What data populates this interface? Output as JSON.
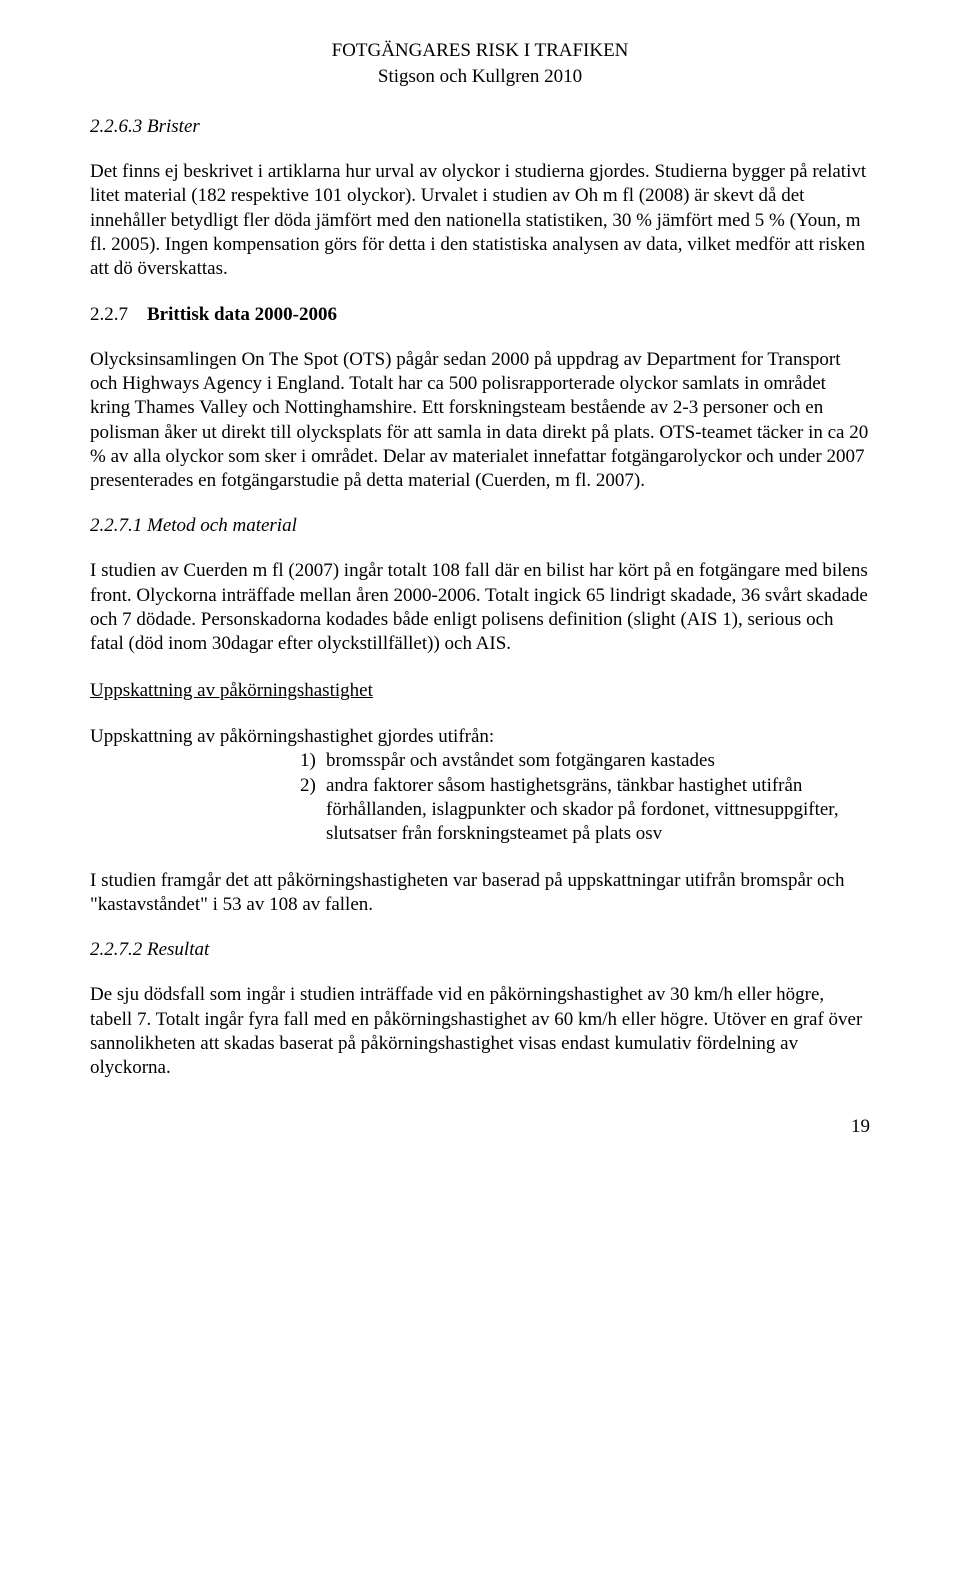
{
  "header": {
    "title": "FOTGÄNGARES RISK I TRAFIKEN",
    "subtitle": "Stigson och Kullgren 2010"
  },
  "s263": {
    "heading": "2.2.6.3   Brister",
    "para": "Det finns ej beskrivet i artiklarna hur urval av olyckor i studierna gjordes. Studierna bygger på relativt litet material (182 respektive 101 olyckor). Urvalet i studien av Oh m fl (2008) är skevt då det innehåller betydligt fler döda jämfört med den nationella statistiken, 30 % jämfört med 5 %  (Youn, m fl. 2005). Ingen kompensation görs för detta i den statistiska analysen av data, vilket medför att risken att dö överskattas."
  },
  "s227": {
    "num": "2.2.7",
    "title": "Brittisk data 2000-2006",
    "para": "Olycksinsamlingen On The Spot (OTS) pågår sedan 2000 på uppdrag av Department for Transport och Highways Agency i England. Totalt har ca 500 polisrapporterade olyckor samlats in området kring Thames Valley och Nottinghamshire. Ett forskningsteam bestående av 2-3 personer och en polisman åker ut direkt till olycksplats för att samla in data direkt på plats. OTS-teamet täcker in ca 20 % av alla olyckor som sker i området. Delar av materialet innefattar fotgängarolyckor och under 2007 presenterades en fotgängarstudie på detta material (Cuerden, m fl. 2007)."
  },
  "s2271": {
    "heading": "2.2.7.1   Metod och material",
    "para": "I studien av Cuerden m fl (2007) ingår totalt 108 fall där en bilist har kört på en fotgängare med bilens front. Olyckorna inträffade mellan åren 2000-2006. Totalt ingick 65 lindrigt skadade, 36 svårt skadade och 7 dödade. Personskadorna kodades både enligt polisens definition (slight (AIS 1), serious och fatal (död inom 30dagar efter olyckstillfället)) och AIS."
  },
  "estimation": {
    "title": "Uppskattning av påkörningshastighet",
    "intro": "Uppskattning av påkörningshastighet gjordes utifrån:",
    "items": [
      {
        "marker": "1)",
        "text": "bromsspår och avståndet som fotgängaren kastades"
      },
      {
        "marker": "2)",
        "text": "andra faktorer såsom hastighetsgräns, tänkbar hastighet utifrån förhållanden, islagpunkter och skador på fordonet, vittnesuppgifter, slutsatser från forskningsteamet på plats osv"
      }
    ],
    "after": "I studien framgår det att påkörningshastigheten var baserad på uppskattningar utifrån bromspår och \"kastavståndet\" i 53 av 108 av fallen."
  },
  "s2272": {
    "heading": "2.2.7.2   Resultat",
    "para": "De sju dödsfall som ingår i studien inträffade vid en påkörningshastighet av 30 km/h eller högre, tabell 7. Totalt ingår fyra fall med en påkörningshastighet av 60 km/h eller högre. Utöver en graf över sannolikheten att skadas baserat på påkörningshastighet visas endast kumulativ fördelning av olyckorna."
  },
  "pageNumber": "19"
}
